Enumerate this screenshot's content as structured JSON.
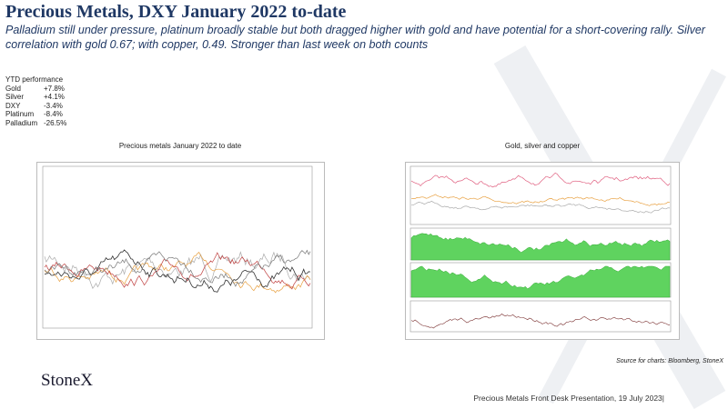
{
  "header": {
    "title": "Precious Metals, DXY January 2022 to-date",
    "subtitle": "Palladium still under pressure, platinum broadly stable but both dragged higher with gold and have potential for a short-covering rally.  Silver correlation with gold 0.67; with copper, 0.49.  Stronger than last week on both counts"
  },
  "ytd": {
    "title": "YTD performance",
    "rows": [
      [
        "Gold",
        "+7.8%"
      ],
      [
        "Silver",
        "+4.1%"
      ],
      [
        "DXY",
        "-3.4%"
      ],
      [
        "Platinum",
        "-8.4%"
      ],
      [
        "Palladium",
        "-26.5%"
      ]
    ]
  },
  "charts": [
    {
      "title": "Precious metals January 2022 to date"
    },
    {
      "title": "Gold, silver and copper"
    }
  ],
  "source": "Source for charts: Bloomberg, StoneX",
  "logo": "StoneX",
  "footer": "Precious Metals Front Desk Presentation, 19 July 2023|"
}
